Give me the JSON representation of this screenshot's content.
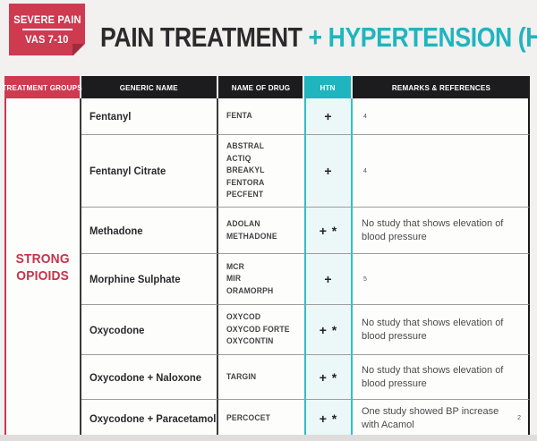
{
  "badge": {
    "line1": "SEVERE PAIN",
    "line2": "VAS 7-10"
  },
  "title": {
    "part1": "PAIN TREATMENT",
    "plus": " + ",
    "part2": "HYPERTENSION (HTN)"
  },
  "colors": {
    "red": "#ce3a50",
    "red_dark": "#9e2c3e",
    "teal": "#1fb5bf",
    "header_black": "#1c1c1e",
    "page_bg": "#f2f1ef"
  },
  "table": {
    "headers": [
      "TREATMENT GROUPS",
      "GENERIC NAME",
      "NAME OF DRUG",
      "HTN",
      "REMARKS & REFERENCES"
    ],
    "group_label": "STRONG\nOPIOIDS",
    "rows": [
      {
        "generic": "Fentanyl",
        "drugs": [
          "FENTA"
        ],
        "htn": "+",
        "remark": "",
        "ref": "4"
      },
      {
        "generic": "Fentanyl Citrate",
        "drugs": [
          "ABSTRAL",
          "ACTIQ",
          "BREAKYL",
          "FENTORA",
          "PECFENT"
        ],
        "htn": "+",
        "remark": "",
        "ref": "4"
      },
      {
        "generic": "Methadone",
        "drugs": [
          "ADOLAN",
          "METHADONE"
        ],
        "htn": "+ *",
        "remark": "No study that shows elevation of blood pressure",
        "ref": ""
      },
      {
        "generic": "Morphine Sulphate",
        "drugs": [
          "MCR",
          "MIR",
          "ORAMORPH"
        ],
        "htn": "+",
        "remark": "",
        "ref": "5"
      },
      {
        "generic": "Oxycodone",
        "drugs": [
          "OXYCOD",
          "OXYCOD FORTE",
          "OXYCONTIN"
        ],
        "htn": "+ *",
        "remark": "No study that shows elevation of blood pressure",
        "ref": ""
      },
      {
        "generic": "Oxycodone + Naloxone",
        "drugs": [
          "TARGIN"
        ],
        "htn": "+ *",
        "remark": "No study that shows elevation of blood pressure",
        "ref": ""
      },
      {
        "generic": "Oxycodone + Paracetamol",
        "drugs": [
          "PERCOCET"
        ],
        "htn": "+ *",
        "remark": "One study showed BP increase with Acamol",
        "ref": "2"
      }
    ]
  }
}
